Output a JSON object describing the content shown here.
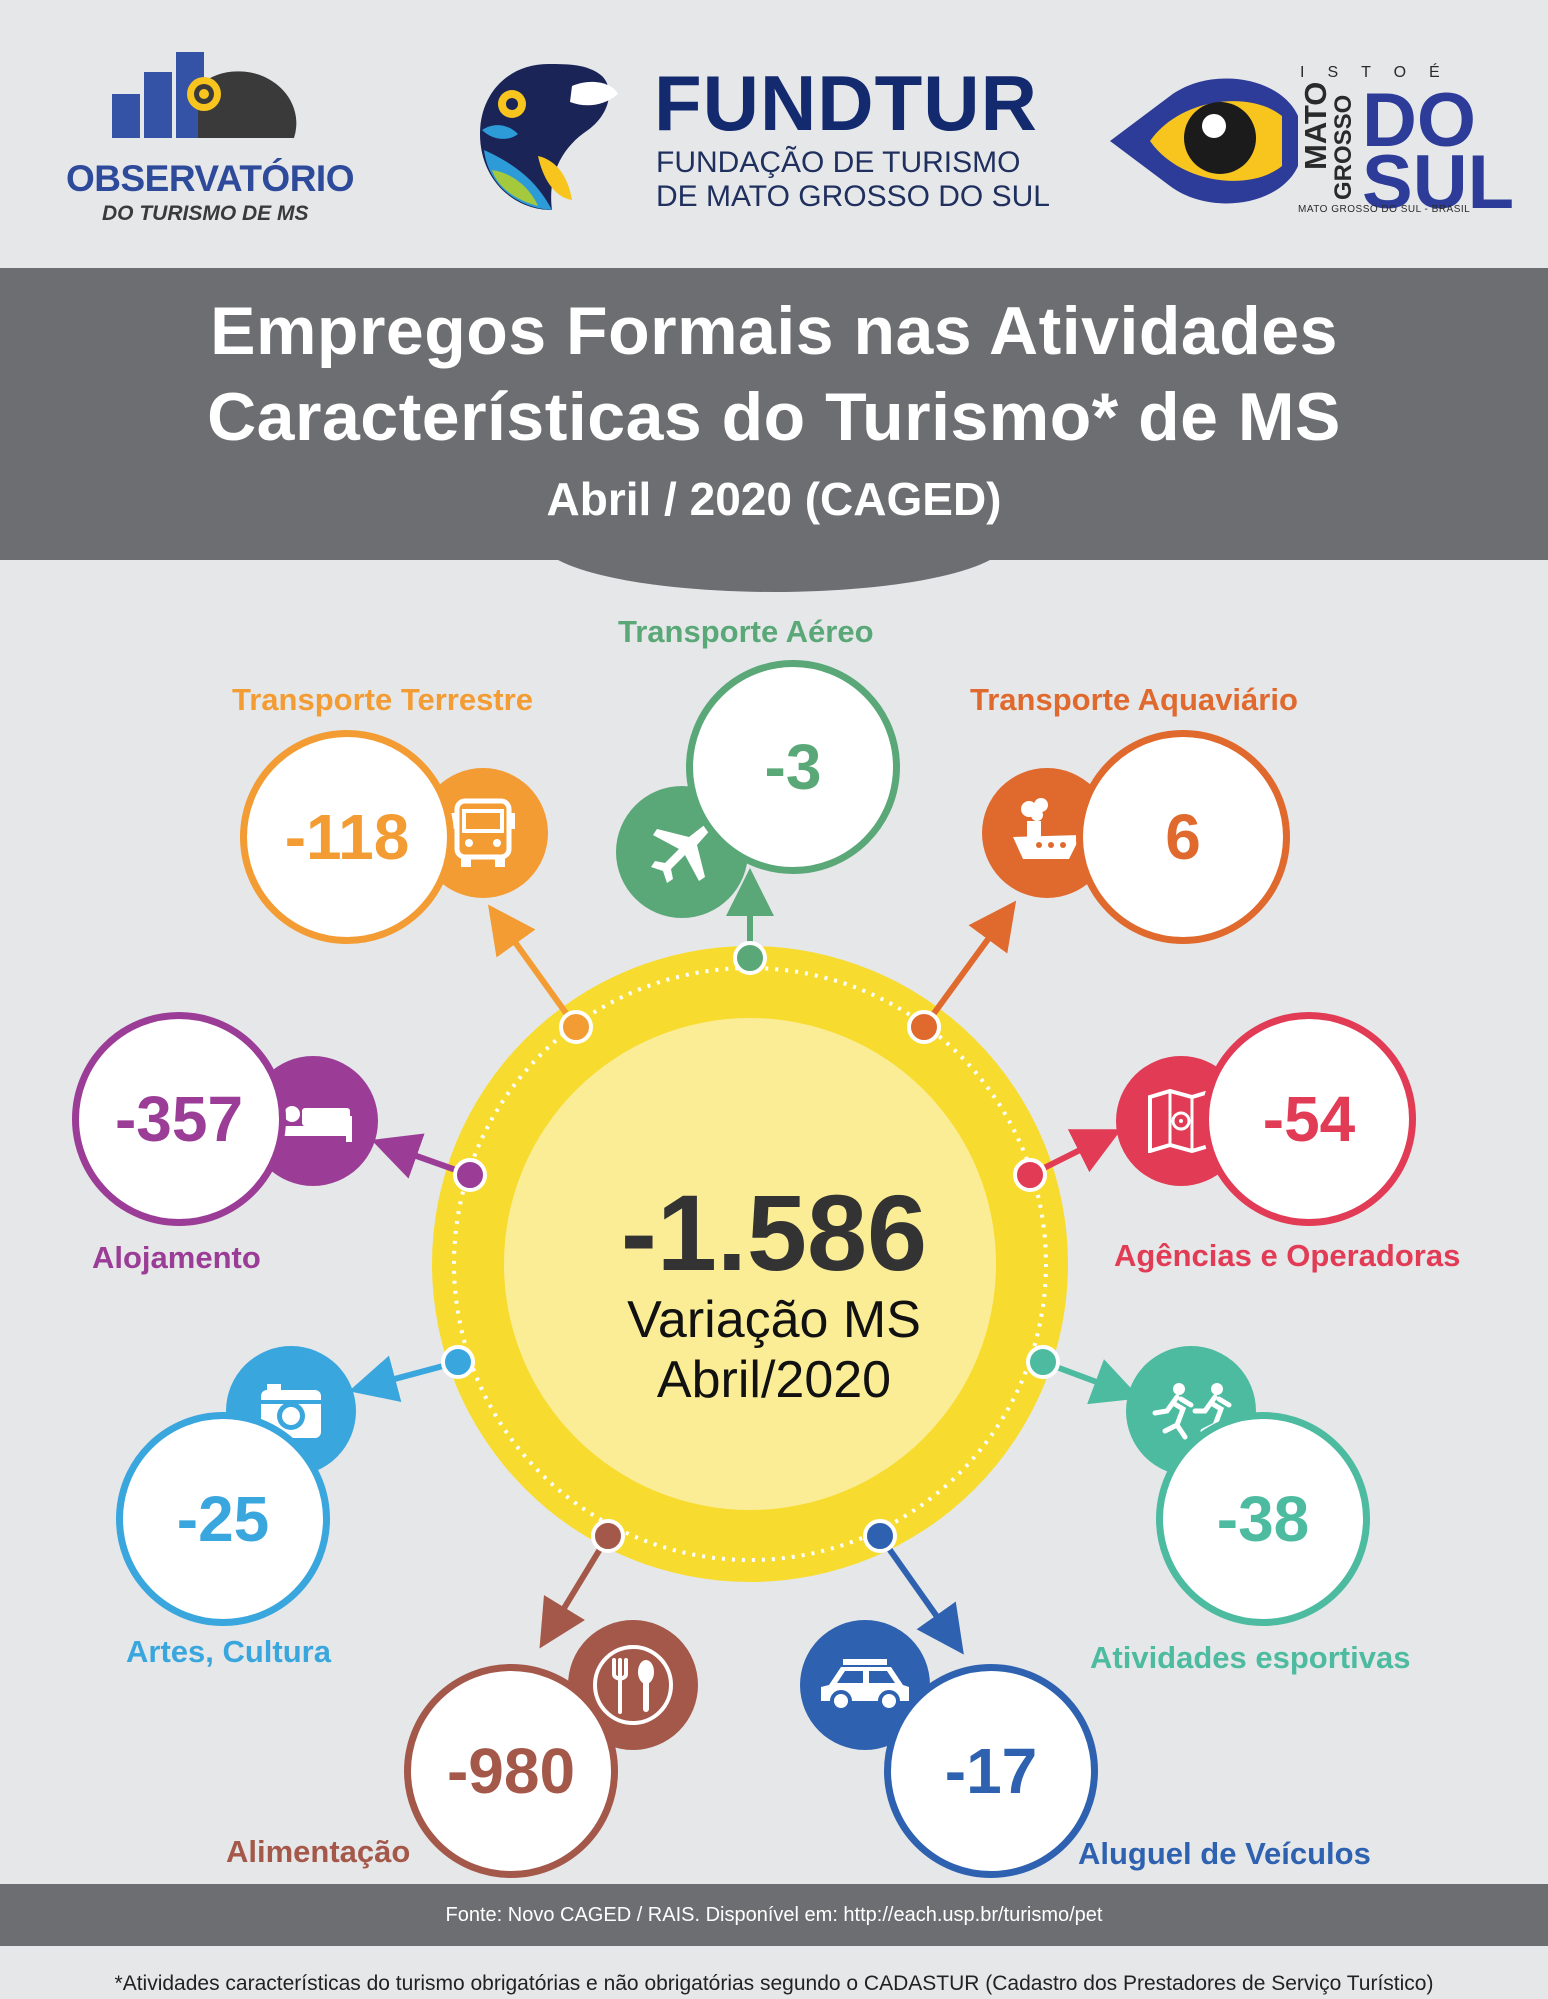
{
  "logos": {
    "observatorio": {
      "line1": "OBSERVATÓRIO",
      "line2": "DO TURISMO DE MS"
    },
    "fundtur": {
      "title": "FUNDTUR",
      "sub1": "FUNDAÇÃO DE TURISMO",
      "sub2": "DE MATO GROSSO DO SUL"
    },
    "ms": {
      "isto": "ISTOÉ",
      "mato": "MATO",
      "grosso": "GROSSO",
      "do": "DO",
      "sul": "SUL",
      "footer": "MATO GROSSO DO SUL - BRASIL"
    }
  },
  "header": {
    "title_line1": "Empregos Formais nas Atividades",
    "title_line2": "Características do Turismo* de MS",
    "subtitle": "Abril / 2020 (CAGED)"
  },
  "center": {
    "value": "-1.586",
    "caption1": "Variação MS",
    "caption2": "Abril/2020",
    "color": "#f7dc2f"
  },
  "categories": [
    {
      "key": "terrestre",
      "label": "Transporte Terrestre",
      "value": "-118",
      "color": "#f39c33",
      "icon": "bus-icon"
    },
    {
      "key": "aereo",
      "label": "Transporte Aéreo",
      "value": "-3",
      "color": "#5aa878",
      "icon": "airplane-icon"
    },
    {
      "key": "aquaviario",
      "label": "Transporte Aquaviário",
      "value": "6",
      "color": "#e06a2e",
      "icon": "ship-icon"
    },
    {
      "key": "alojamento",
      "label": "Alojamento",
      "value": "-357",
      "color": "#9b3d97",
      "icon": "bed-icon"
    },
    {
      "key": "agencias",
      "label": "Agências e Operadoras",
      "value": "-54",
      "color": "#e23b55",
      "icon": "map-icon"
    },
    {
      "key": "artes",
      "label": "Artes, Cultura",
      "value": "-25",
      "color": "#39a6de",
      "icon": "camera-icon"
    },
    {
      "key": "esportivas",
      "label": "Atividades esportivas",
      "value": "-38",
      "color": "#4dbba0",
      "icon": "runners-icon"
    },
    {
      "key": "alimentacao",
      "label": "Alimentação",
      "value": "-980",
      "color": "#a4584a",
      "icon": "fork-spoon-icon"
    },
    {
      "key": "veiculos",
      "label": "Aluguel de Veículos",
      "value": "-17",
      "color": "#2e62b0",
      "icon": "car-icon"
    }
  ],
  "footer": {
    "source": "Fonte: Novo CAGED / RAIS. Disponível em: http://each.usp.br/turismo/pet",
    "note": "*Atividades características do turismo obrigatórias e não obrigatórias segundo o CADASTUR (Cadastro dos Prestadores de Serviço Turístico)"
  }
}
